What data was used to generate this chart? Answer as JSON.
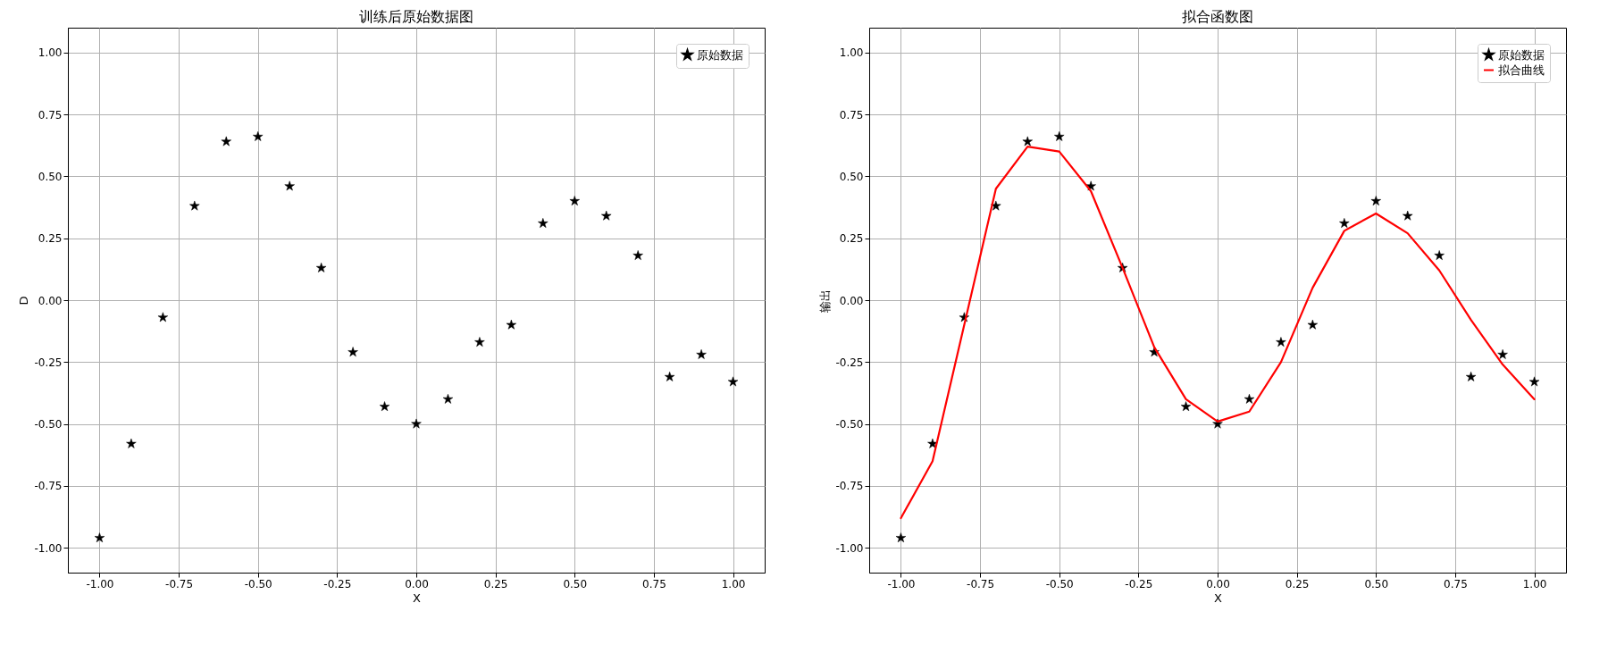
{
  "chart_data": [
    {
      "type": "scatter",
      "title": "训练后原始数据图",
      "xlabel": "X",
      "ylabel": "D",
      "marker": "star",
      "grid": true,
      "legend": "top right",
      "x": [
        -1.0,
        -0.9,
        -0.8,
        -0.7,
        -0.6,
        -0.5,
        -0.4,
        -0.3,
        -0.2,
        -0.1,
        0.0,
        0.1,
        0.2,
        0.3,
        0.4,
        0.5,
        0.6,
        0.7,
        0.8,
        0.9,
        1.0
      ],
      "series": [
        {
          "name": "原始数据",
          "color": "#000000",
          "values": [
            -0.96,
            -0.58,
            -0.07,
            0.38,
            0.64,
            0.66,
            0.46,
            0.13,
            -0.21,
            -0.43,
            -0.5,
            -0.4,
            -0.17,
            -0.1,
            0.31,
            0.4,
            0.34,
            0.18,
            -0.31,
            -0.22,
            -0.33
          ]
        }
      ],
      "xlim": [
        -1.1,
        1.1
      ],
      "ylim": [
        -1.1,
        1.1
      ],
      "xticks": [
        {
          "value": -1,
          "label": "-1.00"
        },
        {
          "value": -0.75,
          "label": "-0.75"
        },
        {
          "value": -0.5,
          "label": "-0.50"
        },
        {
          "value": -0.25,
          "label": "-0.25"
        },
        {
          "value": 0,
          "label": "0.00"
        },
        {
          "value": 0.25,
          "label": "0.25"
        },
        {
          "value": 0.5,
          "label": "0.50"
        },
        {
          "value": 0.75,
          "label": "0.75"
        },
        {
          "value": 1,
          "label": "1.00"
        }
      ],
      "yticks": [
        {
          "value": -1,
          "label": "-1.00"
        },
        {
          "value": -0.75,
          "label": "-0.75"
        },
        {
          "value": -0.5,
          "label": "-0.50"
        },
        {
          "value": -0.25,
          "label": "-0.25"
        },
        {
          "value": 0,
          "label": "0.00"
        },
        {
          "value": 0.25,
          "label": "0.25"
        },
        {
          "value": 0.5,
          "label": "0.50"
        },
        {
          "value": 0.75,
          "label": "0.75"
        },
        {
          "value": 1,
          "label": "1.00"
        }
      ]
    },
    {
      "type": "scatter",
      "title": "拟合函数图",
      "xlabel": "X",
      "ylabel": "输出",
      "marker": "star",
      "grid": true,
      "legend": "top right",
      "x": [
        -1.0,
        -0.9,
        -0.8,
        -0.7,
        -0.6,
        -0.5,
        -0.4,
        -0.3,
        -0.2,
        -0.1,
        0.0,
        0.1,
        0.2,
        0.3,
        0.4,
        0.5,
        0.6,
        0.7,
        0.8,
        0.9,
        1.0
      ],
      "series": [
        {
          "name": "原始数据",
          "color": "#000000",
          "values": [
            -0.96,
            -0.58,
            -0.07,
            0.38,
            0.64,
            0.66,
            0.46,
            0.13,
            -0.21,
            -0.43,
            -0.5,
            -0.4,
            -0.17,
            -0.1,
            0.31,
            0.4,
            0.34,
            0.18,
            -0.31,
            -0.22,
            -0.33
          ]
        },
        {
          "name": "拟合曲线",
          "type": "line",
          "marker": "none",
          "color": "#ff0000",
          "values": [
            -0.88,
            -0.65,
            -0.1,
            0.45,
            0.62,
            0.6,
            0.44,
            0.13,
            -0.19,
            -0.4,
            -0.49,
            -0.45,
            -0.25,
            0.05,
            0.28,
            0.35,
            0.27,
            0.12,
            -0.08,
            -0.26,
            -0.4
          ]
        }
      ],
      "xlim": [
        -1.1,
        1.1
      ],
      "ylim": [
        -1.1,
        1.1
      ],
      "xticks": [
        {
          "value": -1,
          "label": "-1.00"
        },
        {
          "value": -0.75,
          "label": "-0.75"
        },
        {
          "value": -0.5,
          "label": "-0.50"
        },
        {
          "value": -0.25,
          "label": "-0.25"
        },
        {
          "value": 0,
          "label": "0.00"
        },
        {
          "value": 0.25,
          "label": "0.25"
        },
        {
          "value": 0.5,
          "label": "0.50"
        },
        {
          "value": 0.75,
          "label": "0.75"
        },
        {
          "value": 1,
          "label": "1.00"
        }
      ],
      "yticks": [
        {
          "value": -1,
          "label": "-1.00"
        },
        {
          "value": -0.75,
          "label": "-0.75"
        },
        {
          "value": -0.5,
          "label": "-0.50"
        },
        {
          "value": -0.25,
          "label": "-0.25"
        },
        {
          "value": 0,
          "label": "0.00"
        },
        {
          "value": 0.25,
          "label": "0.25"
        },
        {
          "value": 0.5,
          "label": "0.50"
        },
        {
          "value": 0.75,
          "label": "0.75"
        },
        {
          "value": 1,
          "label": "1.00"
        }
      ]
    }
  ]
}
